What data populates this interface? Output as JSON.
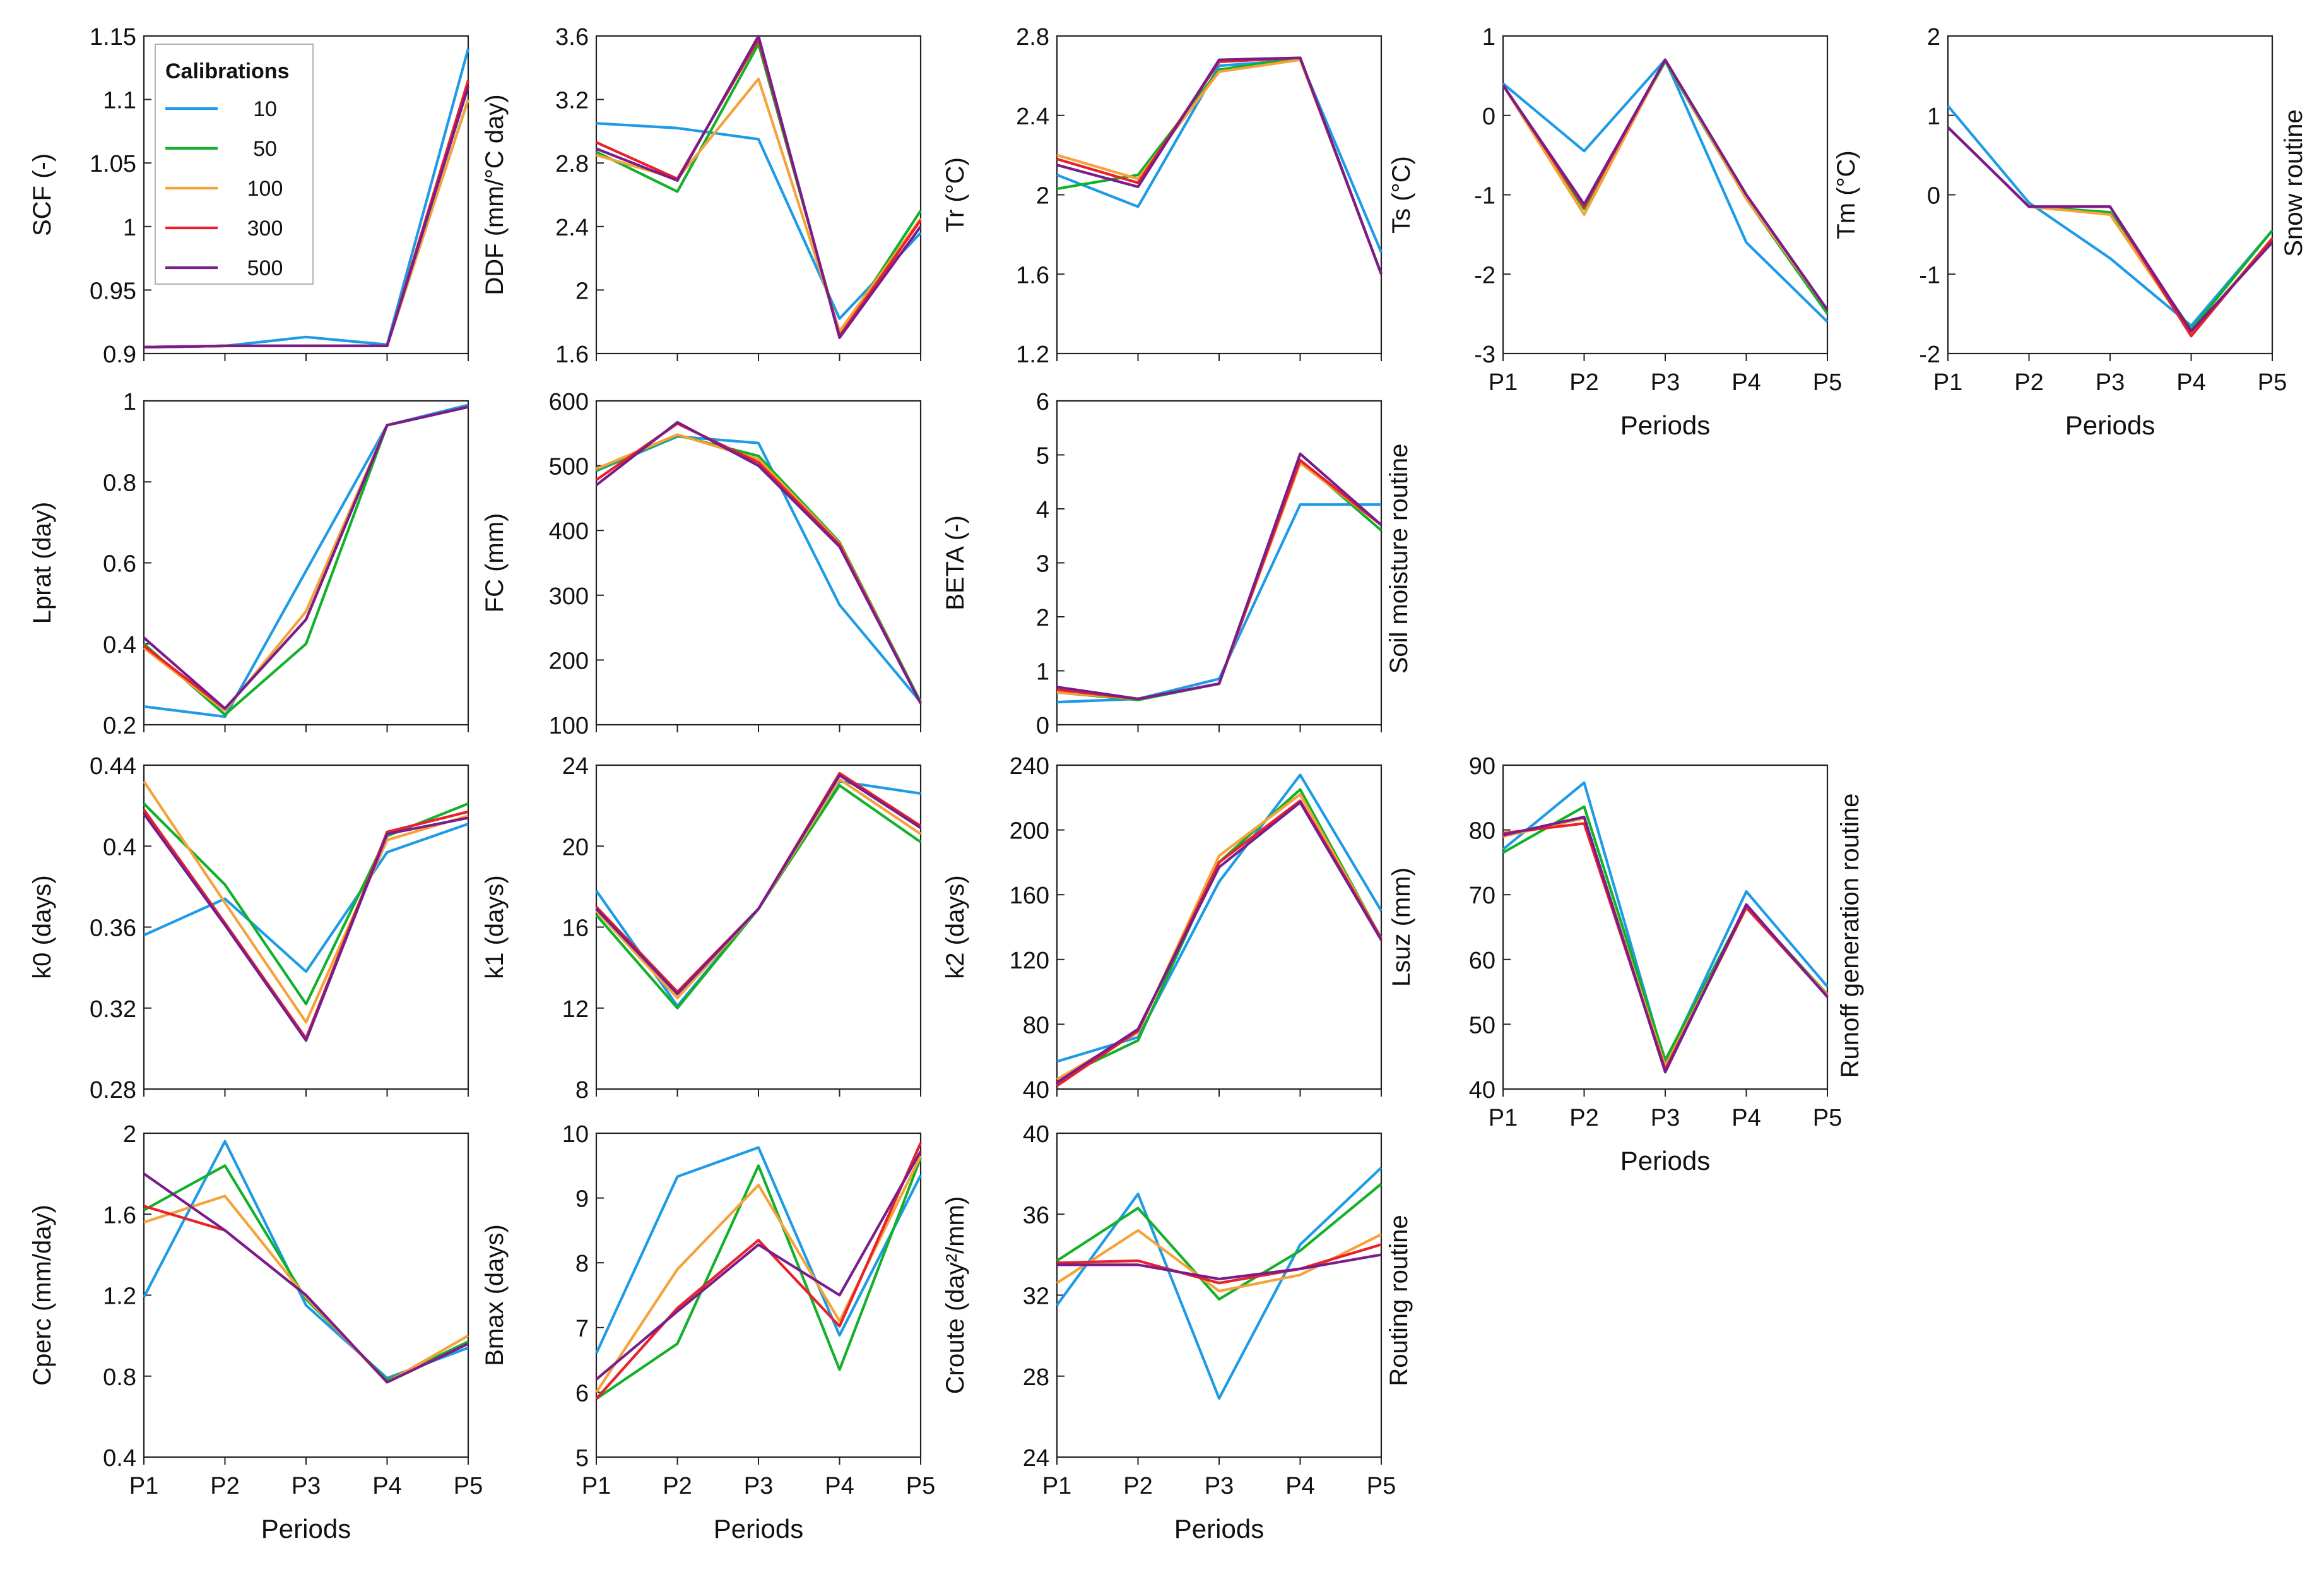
{
  "figure": {
    "series_colors": {
      "10": "#1e9be6",
      "50": "#12b12a",
      "100": "#f5a23a",
      "300": "#e8212a",
      "500": "#7a1d8c"
    },
    "legend": {
      "title": "Calibrations",
      "items": [
        "10",
        "50",
        "100",
        "300",
        "500"
      ]
    },
    "routine_labels": [
      "Snow routine",
      "Soil moisture routine",
      "Runoff generation routine",
      "Routing routine"
    ]
  },
  "chart_data": [
    {
      "type": "line",
      "ylabel": "SCF (-)",
      "xlabel": "",
      "categories": [
        "P1",
        "P2",
        "P3",
        "P4",
        "P5"
      ],
      "ylim": [
        0.9,
        1.15
      ],
      "yticks": [
        "0.9",
        "0.95",
        "1",
        "1.05",
        "1.1",
        "1.15"
      ],
      "series": [
        {
          "name": "10",
          "values": [
            0.905,
            0.906,
            0.913,
            0.907,
            1.14
          ]
        },
        {
          "name": "50",
          "values": [
            0.905,
            0.906,
            0.906,
            0.906,
            1.1
          ]
        },
        {
          "name": "100",
          "values": [
            0.905,
            0.906,
            0.906,
            0.906,
            1.1
          ]
        },
        {
          "name": "300",
          "values": [
            0.905,
            0.906,
            0.906,
            0.906,
            1.115
          ]
        },
        {
          "name": "500",
          "values": [
            0.905,
            0.906,
            0.906,
            0.906,
            1.11
          ]
        }
      ]
    },
    {
      "type": "line",
      "ylabel": "DDF (mm/°C day)",
      "xlabel": "",
      "categories": [
        "P1",
        "P2",
        "P3",
        "P4",
        "P5"
      ],
      "ylim": [
        1.6,
        3.6
      ],
      "yticks": [
        "1.6",
        "2",
        "2.4",
        "2.8",
        "3.2",
        "3.6"
      ],
      "series": [
        {
          "name": "10",
          "values": [
            3.05,
            3.02,
            2.95,
            1.82,
            2.36
          ]
        },
        {
          "name": "50",
          "values": [
            2.87,
            2.62,
            3.55,
            1.72,
            2.5
          ]
        },
        {
          "name": "100",
          "values": [
            2.85,
            2.7,
            3.33,
            1.74,
            2.45
          ]
        },
        {
          "name": "300",
          "values": [
            2.93,
            2.7,
            3.58,
            1.71,
            2.44
          ]
        },
        {
          "name": "500",
          "values": [
            2.89,
            2.69,
            3.6,
            1.7,
            2.4
          ]
        }
      ]
    },
    {
      "type": "line",
      "ylabel": "Tr (°C)",
      "xlabel": "",
      "categories": [
        "P1",
        "P2",
        "P3",
        "P4",
        "P5"
      ],
      "ylim": [
        1.2,
        2.8
      ],
      "yticks": [
        "1.2",
        "1.6",
        "2",
        "2.4",
        "2.8"
      ],
      "series": [
        {
          "name": "10",
          "values": [
            2.1,
            1.94,
            2.65,
            2.68,
            1.71
          ]
        },
        {
          "name": "50",
          "values": [
            2.03,
            2.1,
            2.63,
            2.69,
            1.6
          ]
        },
        {
          "name": "100",
          "values": [
            2.2,
            2.08,
            2.62,
            2.68,
            1.6
          ]
        },
        {
          "name": "300",
          "values": [
            2.18,
            2.06,
            2.67,
            2.69,
            1.6
          ]
        },
        {
          "name": "500",
          "values": [
            2.15,
            2.04,
            2.68,
            2.69,
            1.6
          ]
        }
      ]
    },
    {
      "type": "line",
      "ylabel": "Ts (°C)",
      "xlabel": "Periods",
      "categories": [
        "P1",
        "P2",
        "P3",
        "P4",
        "P5"
      ],
      "ylim": [
        -3,
        1
      ],
      "yticks": [
        "-3",
        "-2",
        "-1",
        "0",
        "1"
      ],
      "series": [
        {
          "name": "10",
          "values": [
            0.4,
            -0.45,
            0.7,
            -1.6,
            -2.6
          ]
        },
        {
          "name": "50",
          "values": [
            0.38,
            -1.18,
            0.68,
            -1.05,
            -2.5
          ]
        },
        {
          "name": "100",
          "values": [
            0.38,
            -1.25,
            0.7,
            -1.05,
            -2.45
          ]
        },
        {
          "name": "300",
          "values": [
            0.38,
            -1.15,
            0.7,
            -1.0,
            -2.45
          ]
        },
        {
          "name": "500",
          "values": [
            0.38,
            -1.12,
            0.7,
            -1.0,
            -2.45
          ]
        }
      ]
    },
    {
      "type": "line",
      "ylabel": "Tm (°C)",
      "xlabel": "Periods",
      "categories": [
        "P1",
        "P2",
        "P3",
        "P4",
        "P5"
      ],
      "ylim": [
        -2,
        2
      ],
      "yticks": [
        "-2",
        "-1",
        "0",
        "1",
        "2"
      ],
      "series": [
        {
          "name": "10",
          "values": [
            1.12,
            -0.1,
            -0.8,
            -1.65,
            -0.45
          ]
        },
        {
          "name": "50",
          "values": [
            0.85,
            -0.15,
            -0.22,
            -1.7,
            -0.45
          ]
        },
        {
          "name": "100",
          "values": [
            0.85,
            -0.15,
            -0.25,
            -1.75,
            -0.55
          ]
        },
        {
          "name": "300",
          "values": [
            0.85,
            -0.15,
            -0.15,
            -1.78,
            -0.55
          ]
        },
        {
          "name": "500",
          "values": [
            0.85,
            -0.15,
            -0.15,
            -1.72,
            -0.6
          ]
        }
      ]
    },
    {
      "type": "line",
      "ylabel": "Lprat (day)",
      "xlabel": "",
      "categories": [
        "P1",
        "P2",
        "P3",
        "P4",
        "P5"
      ],
      "ylim": [
        0.2,
        1.0
      ],
      "yticks": [
        "0.2",
        "0.4",
        "0.6",
        "0.8",
        "1"
      ],
      "series": [
        {
          "name": "10",
          "values": [
            0.245,
            0.22,
            0.58,
            0.94,
            0.99
          ]
        },
        {
          "name": "50",
          "values": [
            0.4,
            0.225,
            0.4,
            0.94,
            0.985
          ]
        },
        {
          "name": "100",
          "values": [
            0.39,
            0.235,
            0.48,
            0.94,
            0.985
          ]
        },
        {
          "name": "300",
          "values": [
            0.395,
            0.24,
            0.46,
            0.94,
            0.985
          ]
        },
        {
          "name": "500",
          "values": [
            0.415,
            0.24,
            0.46,
            0.94,
            0.985
          ]
        }
      ]
    },
    {
      "type": "line",
      "ylabel": "FC (mm)",
      "xlabel": "",
      "categories": [
        "P1",
        "P2",
        "P3",
        "P4",
        "P5"
      ],
      "ylim": [
        100,
        600
      ],
      "yticks": [
        "100",
        "200",
        "300",
        "400",
        "500",
        "600"
      ],
      "series": [
        {
          "name": "10",
          "values": [
            492,
            545,
            535,
            285,
            135
          ]
        },
        {
          "name": "50",
          "values": [
            493,
            547,
            515,
            382,
            135
          ]
        },
        {
          "name": "100",
          "values": [
            495,
            548,
            510,
            380,
            133
          ]
        },
        {
          "name": "300",
          "values": [
            478,
            565,
            505,
            378,
            133
          ]
        },
        {
          "name": "500",
          "values": [
            470,
            567,
            500,
            375,
            133
          ]
        }
      ]
    },
    {
      "type": "line",
      "ylabel": "BETA (-)",
      "xlabel": "",
      "categories": [
        "P1",
        "P2",
        "P3",
        "P4",
        "P5"
      ],
      "ylim": [
        0,
        6
      ],
      "yticks": [
        "0",
        "1",
        "2",
        "3",
        "4",
        "5",
        "6"
      ],
      "series": [
        {
          "name": "10",
          "values": [
            0.42,
            0.48,
            0.85,
            4.08,
            4.08
          ]
        },
        {
          "name": "50",
          "values": [
            0.6,
            0.46,
            0.76,
            4.9,
            3.6
          ]
        },
        {
          "name": "100",
          "values": [
            0.6,
            0.48,
            0.76,
            4.85,
            3.7
          ]
        },
        {
          "name": "300",
          "values": [
            0.65,
            0.48,
            0.76,
            4.9,
            3.7
          ]
        },
        {
          "name": "500",
          "values": [
            0.7,
            0.48,
            0.76,
            5.02,
            3.7
          ]
        }
      ]
    },
    {
      "type": "line",
      "ylabel": "k0 (days)",
      "xlabel": "",
      "categories": [
        "P1",
        "P2",
        "P3",
        "P4",
        "P5"
      ],
      "ylim": [
        0.28,
        0.44
      ],
      "yticks": [
        "0.28",
        "0.32",
        "0.36",
        "0.4",
        "0.44"
      ],
      "series": [
        {
          "name": "10",
          "values": [
            0.356,
            0.374,
            0.338,
            0.397,
            0.411
          ]
        },
        {
          "name": "50",
          "values": [
            0.421,
            0.381,
            0.322,
            0.405,
            0.421
          ]
        },
        {
          "name": "100",
          "values": [
            0.432,
            0.372,
            0.313,
            0.403,
            0.415
          ]
        },
        {
          "name": "300",
          "values": [
            0.418,
            0.362,
            0.305,
            0.407,
            0.417
          ]
        },
        {
          "name": "500",
          "values": [
            0.416,
            0.361,
            0.304,
            0.406,
            0.414
          ]
        }
      ]
    },
    {
      "type": "line",
      "ylabel": "k1 (days)",
      "xlabel": "",
      "categories": [
        "P1",
        "P2",
        "P3",
        "P4",
        "P5"
      ],
      "ylim": [
        8,
        24
      ],
      "yticks": [
        "8",
        "12",
        "16",
        "20",
        "24"
      ],
      "series": [
        {
          "name": "10",
          "values": [
            17.8,
            12.1,
            16.9,
            23.2,
            22.6
          ]
        },
        {
          "name": "50",
          "values": [
            16.6,
            12.0,
            16.9,
            23.0,
            20.2
          ]
        },
        {
          "name": "100",
          "values": [
            16.8,
            12.5,
            16.9,
            23.3,
            20.6
          ]
        },
        {
          "name": "300",
          "values": [
            17.0,
            12.8,
            16.9,
            23.6,
            21.0
          ]
        },
        {
          "name": "500",
          "values": [
            16.9,
            12.7,
            16.9,
            23.5,
            20.9
          ]
        }
      ]
    },
    {
      "type": "line",
      "ylabel": "k2 (days)",
      "xlabel": "",
      "categories": [
        "P1",
        "P2",
        "P3",
        "P4",
        "P5"
      ],
      "ylim": [
        40,
        240
      ],
      "yticks": [
        "40",
        "80",
        "120",
        "160",
        "200",
        "240"
      ],
      "series": [
        {
          "name": "10",
          "values": [
            57,
            72,
            168,
            234,
            150
          ]
        },
        {
          "name": "50",
          "values": [
            46,
            70,
            180,
            225,
            133
          ]
        },
        {
          "name": "100",
          "values": [
            46,
            75,
            184,
            222,
            133
          ]
        },
        {
          "name": "300",
          "values": [
            42,
            76,
            180,
            218,
            133
          ]
        },
        {
          "name": "500",
          "values": [
            44,
            77,
            177,
            217,
            132
          ]
        }
      ]
    },
    {
      "type": "line",
      "ylabel": "Lsuz (mm)",
      "xlabel": "Periods",
      "categories": [
        "P1",
        "P2",
        "P3",
        "P4",
        "P5"
      ],
      "ylim": [
        40,
        90
      ],
      "yticks": [
        "40",
        "50",
        "60",
        "70",
        "80",
        "90"
      ],
      "series": [
        {
          "name": "10",
          "values": [
            77.0,
            87.3,
            44.0,
            70.5,
            55.8
          ]
        },
        {
          "name": "50",
          "values": [
            76.5,
            83.6,
            44.5,
            68.2,
            54.6
          ]
        },
        {
          "name": "100",
          "values": [
            79.0,
            81.8,
            43.5,
            68.0,
            54.5
          ]
        },
        {
          "name": "300",
          "values": [
            79.5,
            81.0,
            43.0,
            68.0,
            54.3
          ]
        },
        {
          "name": "500",
          "values": [
            79.2,
            82.0,
            42.6,
            68.5,
            54.2
          ]
        }
      ]
    },
    {
      "type": "line",
      "ylabel": "Cperc (mm/day)",
      "xlabel": "Periods",
      "categories": [
        "P1",
        "P2",
        "P3",
        "P4",
        "P5"
      ],
      "ylim": [
        0.4,
        2.0
      ],
      "yticks": [
        "0.4",
        "0.8",
        "1.2",
        "1.6",
        "2"
      ],
      "series": [
        {
          "name": "10",
          "values": [
            1.19,
            1.96,
            1.15,
            0.79,
            0.94
          ]
        },
        {
          "name": "50",
          "values": [
            1.62,
            1.84,
            1.18,
            0.78,
            0.97
          ]
        },
        {
          "name": "100",
          "values": [
            1.56,
            1.69,
            1.19,
            0.77,
            1.0
          ]
        },
        {
          "name": "300",
          "values": [
            1.64,
            1.52,
            1.2,
            0.77,
            0.96
          ]
        },
        {
          "name": "500",
          "values": [
            1.8,
            1.52,
            1.2,
            0.77,
            0.96
          ]
        }
      ]
    },
    {
      "type": "line",
      "ylabel": "Bmax (days)",
      "xlabel": "Periods",
      "categories": [
        "P1",
        "P2",
        "P3",
        "P4",
        "P5"
      ],
      "ylim": [
        5,
        10
      ],
      "yticks": [
        "5",
        "6",
        "7",
        "8",
        "9",
        "10"
      ],
      "series": [
        {
          "name": "10",
          "values": [
            6.6,
            9.33,
            9.78,
            6.88,
            9.35
          ]
        },
        {
          "name": "50",
          "values": [
            5.9,
            6.75,
            9.5,
            6.35,
            9.62
          ]
        },
        {
          "name": "100",
          "values": [
            6.0,
            7.9,
            9.2,
            7.1,
            9.65
          ]
        },
        {
          "name": "300",
          "values": [
            5.9,
            7.3,
            8.35,
            7.02,
            9.85
          ]
        },
        {
          "name": "500",
          "values": [
            6.2,
            7.25,
            8.28,
            7.5,
            9.72
          ]
        }
      ]
    },
    {
      "type": "line",
      "ylabel": "Croute (day²/mm)",
      "xlabel": "Periods",
      "categories": [
        "P1",
        "P2",
        "P3",
        "P4",
        "P5"
      ],
      "ylim": [
        24,
        40
      ],
      "yticks": [
        "24",
        "28",
        "32",
        "36",
        "40"
      ],
      "series": [
        {
          "name": "10",
          "values": [
            31.5,
            37.0,
            26.9,
            34.5,
            38.3
          ]
        },
        {
          "name": "50",
          "values": [
            33.7,
            36.3,
            31.8,
            34.2,
            37.5
          ]
        },
        {
          "name": "100",
          "values": [
            32.6,
            35.2,
            32.2,
            33.0,
            35.0
          ]
        },
        {
          "name": "300",
          "values": [
            33.6,
            33.7,
            32.6,
            33.3,
            34.5
          ]
        },
        {
          "name": "500",
          "values": [
            33.5,
            33.5,
            32.8,
            33.3,
            34.0
          ]
        }
      ]
    }
  ]
}
